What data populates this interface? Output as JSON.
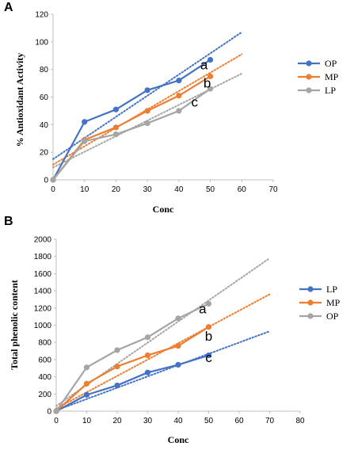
{
  "chart_data": [
    {
      "panel": "A",
      "type": "line",
      "xlabel": "Conc",
      "ylabel": "% Antioxidant Activity",
      "xlim": [
        0,
        70
      ],
      "ylim": [
        0,
        120
      ],
      "xticks": [
        0,
        10,
        20,
        30,
        40,
        50,
        60,
        70
      ],
      "yticks": [
        0,
        20,
        40,
        60,
        80,
        100,
        120
      ],
      "grid": false,
      "legend_position": "right",
      "x": [
        0,
        10,
        20,
        30,
        40,
        50
      ],
      "series": [
        {
          "name": "OP",
          "color": "#4472C4",
          "values": [
            0,
            42,
            51,
            65,
            72,
            87
          ],
          "trendline_end": [
            60,
            107
          ],
          "trendline_start": [
            0,
            15
          ]
        },
        {
          "name": "MP",
          "color": "#ED7D31",
          "values": [
            0,
            29,
            38,
            50,
            61,
            75
          ],
          "trendline_end": [
            60,
            91
          ],
          "trendline_start": [
            0,
            11
          ]
        },
        {
          "name": "LP",
          "color": "#A5A5A5",
          "values": [
            0,
            28,
            33,
            41,
            50,
            66
          ],
          "trendline_end": [
            60,
            77
          ],
          "trendline_start": [
            0,
            9
          ]
        }
      ],
      "annotations": [
        {
          "text": "a",
          "x": 48,
          "y": 80
        },
        {
          "text": "b",
          "x": 49,
          "y": 67
        },
        {
          "text": "c",
          "x": 45,
          "y": 53
        }
      ]
    },
    {
      "panel": "B",
      "type": "line",
      "xlabel": "Conc",
      "ylabel": "Total phenolic content",
      "xlim": [
        0,
        80
      ],
      "ylim": [
        0,
        2000
      ],
      "xticks": [
        0,
        10,
        20,
        30,
        40,
        50,
        60,
        70,
        80
      ],
      "yticks": [
        0,
        200,
        400,
        600,
        800,
        1000,
        1200,
        1400,
        1600,
        1800,
        2000
      ],
      "grid": false,
      "legend_position": "right",
      "x": [
        0,
        10,
        20,
        30,
        40,
        50
      ],
      "series": [
        {
          "name": "LP",
          "color": "#4472C4",
          "values": [
            0,
            190,
            300,
            450,
            540,
            650
          ],
          "trendline_end": [
            70,
            930
          ],
          "trendline_start": [
            0,
            10
          ]
        },
        {
          "name": "MP",
          "color": "#ED7D31",
          "values": [
            0,
            320,
            520,
            650,
            760,
            980
          ],
          "trendline_end": [
            70,
            1360
          ],
          "trendline_start": [
            0,
            30
          ]
        },
        {
          "name": "OP",
          "color": "#A5A5A5",
          "values": [
            0,
            510,
            710,
            860,
            1080,
            1250
          ],
          "trendline_end": [
            70,
            1780
          ],
          "trendline_start": [
            0,
            60
          ]
        }
      ],
      "annotations": [
        {
          "text": "a",
          "x": 48,
          "y": 1140
        },
        {
          "text": "b",
          "x": 50,
          "y": 820
        },
        {
          "text": "c",
          "x": 50,
          "y": 570
        }
      ]
    }
  ]
}
